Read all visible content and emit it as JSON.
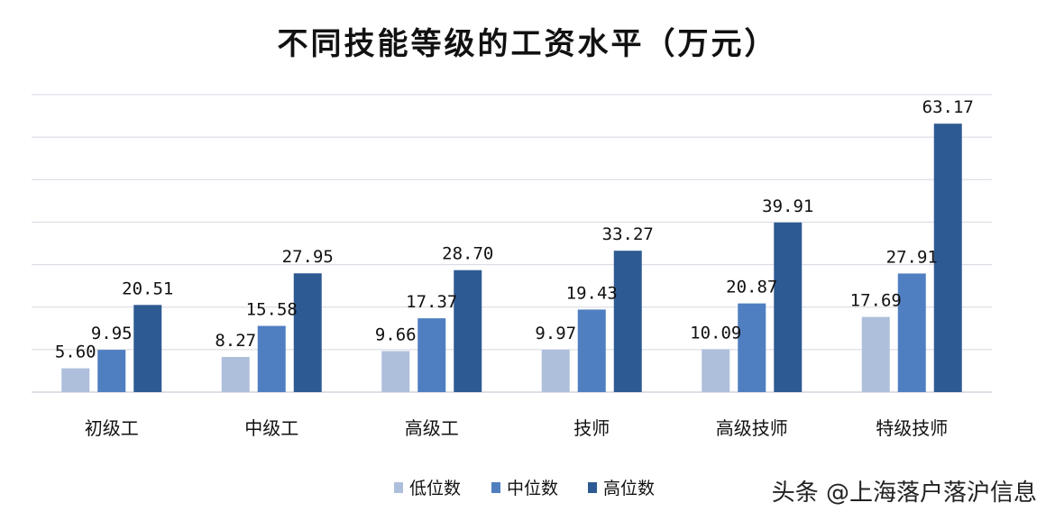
{
  "chart_data": {
    "type": "bar",
    "title": "不同技能等级的工资水平（万元）",
    "categories": [
      "初级工",
      "中级工",
      "高级工",
      "技师",
      "高级技师",
      "特级技师"
    ],
    "series": [
      {
        "name": "低位数",
        "color": "#aebfdc",
        "values": [
          5.6,
          8.27,
          9.66,
          9.97,
          10.09,
          17.69
        ],
        "labels": [
          "5.60",
          "8.27",
          "9.66",
          "9.97",
          "10.09",
          "17.69"
        ]
      },
      {
        "name": "中位数",
        "color": "#4f7fc0",
        "values": [
          9.95,
          15.58,
          17.37,
          19.43,
          20.87,
          27.91
        ],
        "labels": [
          "9.95",
          "15.58",
          "17.37",
          "19.43",
          "20.87",
          "27.91"
        ]
      },
      {
        "name": "高位数",
        "color": "#2e5a93",
        "values": [
          20.51,
          27.95,
          28.7,
          33.27,
          39.91,
          63.17
        ],
        "labels": [
          "20.51",
          "27.95",
          "28.70",
          "33.27",
          "39.91",
          "63.17"
        ]
      }
    ],
    "ylim": [
      0,
      70
    ],
    "grid": true,
    "legend_position": "bottom"
  },
  "watermark": "头条 @上海落户落沪信息"
}
